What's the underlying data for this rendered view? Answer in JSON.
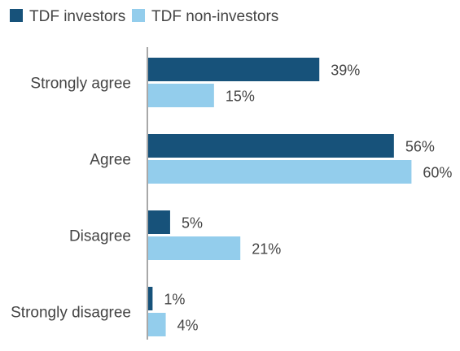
{
  "chart_data": {
    "type": "bar",
    "orientation": "horizontal",
    "categories": [
      "Strongly agree",
      "Agree",
      "Disagree",
      "Strongly disagree"
    ],
    "series": [
      {
        "name": "TDF investors",
        "values": [
          39,
          56,
          5,
          1
        ],
        "color": "#17527a"
      },
      {
        "name": "TDF non-investors",
        "values": [
          15,
          60,
          21,
          4
        ],
        "color": "#93cdec"
      }
    ],
    "value_suffix": "%",
    "xlim": [
      0,
      60
    ],
    "legend_position": "top-left",
    "grid": false
  }
}
